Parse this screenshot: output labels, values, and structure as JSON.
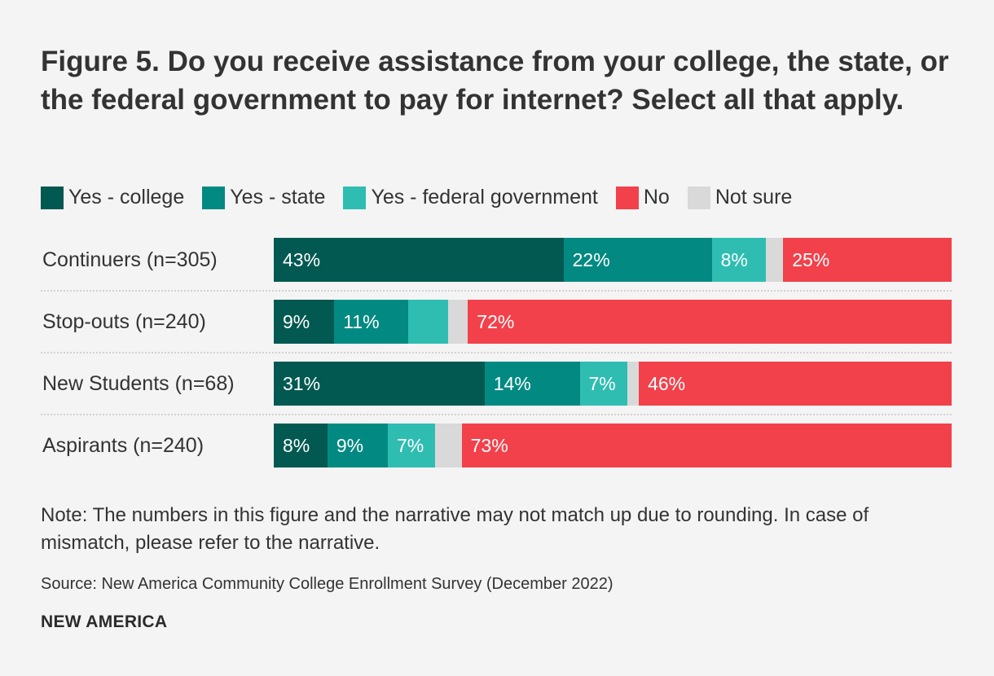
{
  "title": "Figure 5. Do you receive assistance from your college, the state, or the federal government to pay for internet? Select all that apply.",
  "colors": {
    "yes_college": "#015951",
    "yes_state": "#028a82",
    "yes_federal": "#2fbdb2",
    "no": "#f2414b",
    "not_sure": "#d9d9d9"
  },
  "note": "Note: The numbers in this figure and the narrative may not match up due to rounding. In case of mismatch, please refer to the narrative.",
  "source": "Source: New America Community College Enrollment Survey (December 2022)",
  "brand": "NEW AMERICA",
  "chart_data": {
    "type": "bar",
    "orientation": "horizontal",
    "stacked": true,
    "unit": "percent",
    "xlim": [
      0,
      100
    ],
    "categories": [
      "Continuers (n=305)",
      "Stop-outs (n=240)",
      "New Students (n=68)",
      "Aspirants (n=240)"
    ],
    "series": [
      {
        "key": "yes_college",
        "name": "Yes - college",
        "values": [
          43,
          9,
          31,
          8
        ],
        "labels": [
          "43%",
          "9%",
          "31%",
          "8%"
        ]
      },
      {
        "key": "yes_state",
        "name": "Yes - state",
        "values": [
          22,
          11,
          14,
          9
        ],
        "labels": [
          "22%",
          "11%",
          "14%",
          "9%"
        ]
      },
      {
        "key": "yes_federal",
        "name": "Yes - federal government",
        "values": [
          8,
          6,
          7,
          7
        ],
        "labels": [
          "8%",
          "",
          "7%",
          "7%"
        ]
      },
      {
        "key": "not_sure",
        "name": "Not sure",
        "values": [
          2.6,
          2.9,
          1.7,
          4
        ],
        "labels": [
          "",
          "",
          "",
          ""
        ]
      },
      {
        "key": "no",
        "name": "No",
        "values": [
          25,
          72,
          46,
          73
        ],
        "labels": [
          "25%",
          "72%",
          "46%",
          "73%"
        ]
      }
    ],
    "legend": [
      {
        "key": "yes_college",
        "name": "Yes - college"
      },
      {
        "key": "yes_state",
        "name": "Yes - state"
      },
      {
        "key": "yes_federal",
        "name": "Yes - federal government"
      },
      {
        "key": "no",
        "name": "No"
      },
      {
        "key": "not_sure",
        "name": "Not sure"
      }
    ],
    "legend_position": "top-left",
    "grid": false
  }
}
